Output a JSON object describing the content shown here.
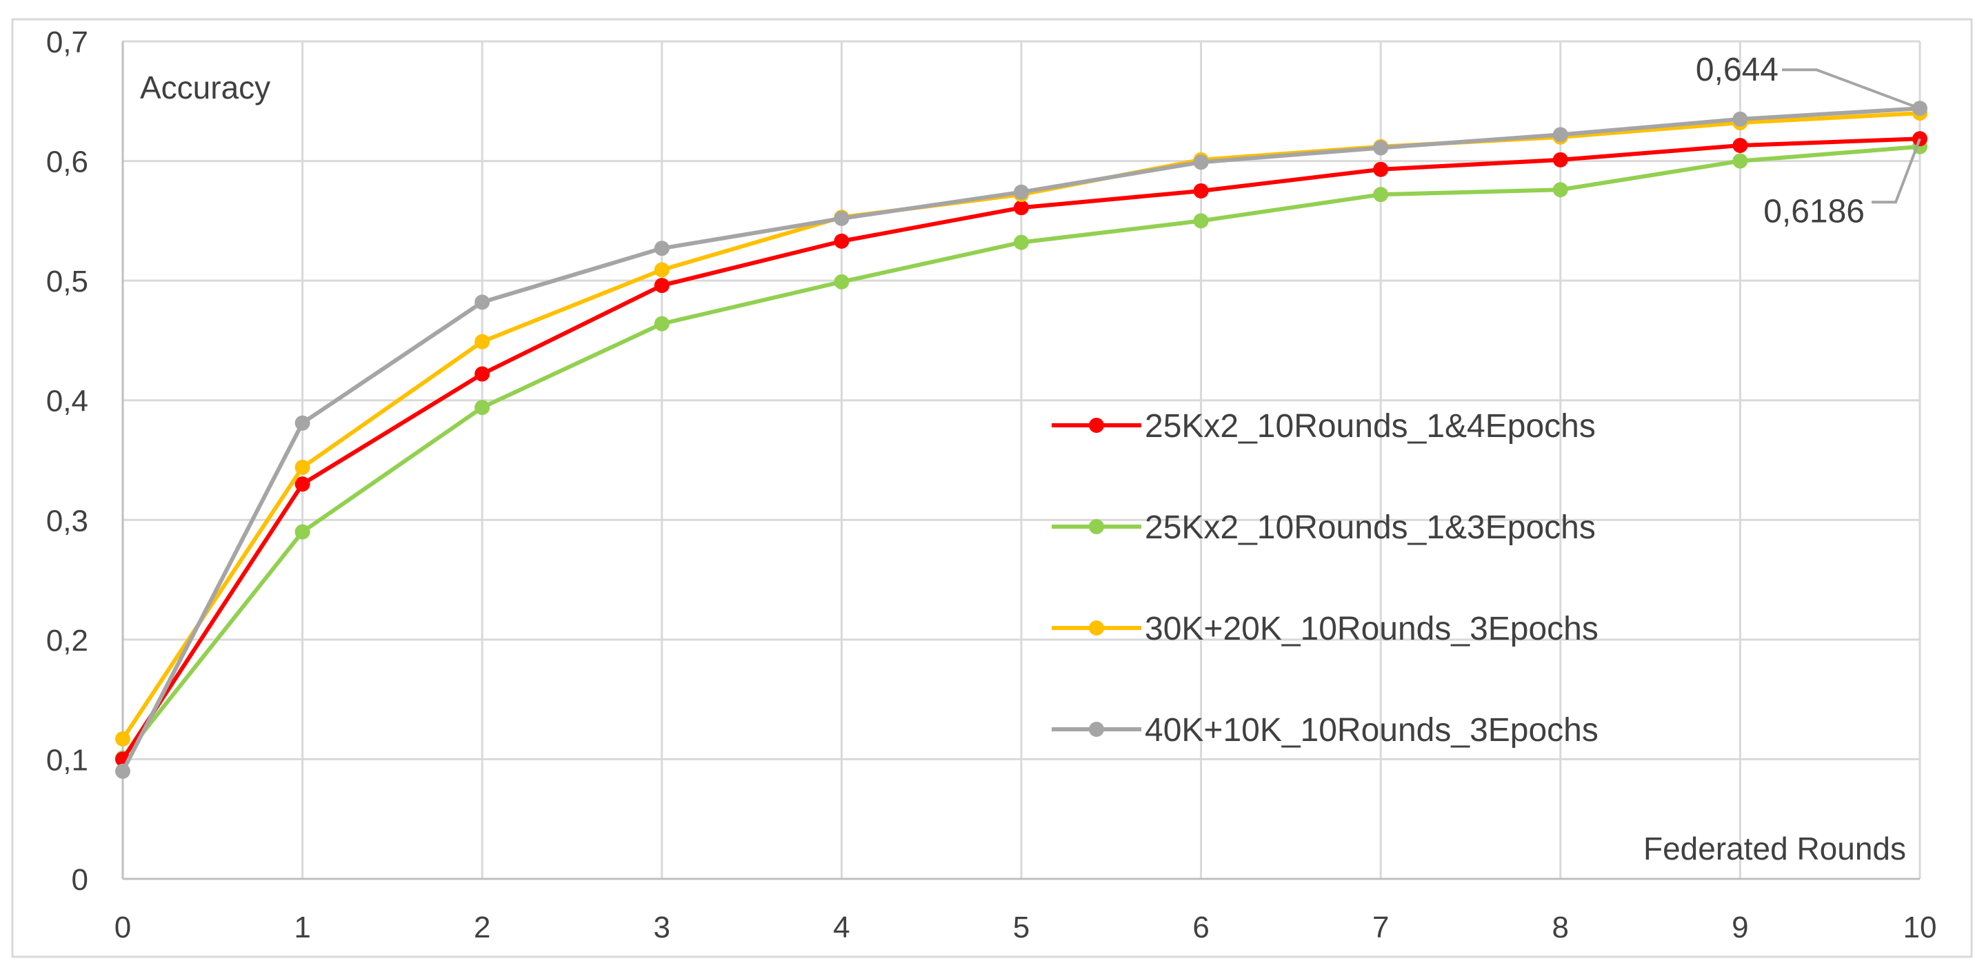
{
  "chart_data": {
    "type": "line",
    "title": "",
    "ylabel": "Accuracy",
    "xlabel": "Federated Rounds",
    "x": [
      0,
      1,
      2,
      3,
      4,
      5,
      6,
      7,
      8,
      9,
      10
    ],
    "xticks": [
      "0",
      "1",
      "2",
      "3",
      "4",
      "5",
      "6",
      "7",
      "8",
      "9",
      "10"
    ],
    "ylim": [
      0,
      0.7
    ],
    "yticks": [
      "0",
      "0,1",
      "0,2",
      "0,3",
      "0,4",
      "0,5",
      "0,6",
      "0,7"
    ],
    "grid": true,
    "legend_position": "center-right",
    "series": [
      {
        "name": "25Kx2_10Rounds_1&4Epochs",
        "color": "#ff0000",
        "values": [
          0.1,
          0.33,
          0.422,
          0.496,
          0.533,
          0.561,
          0.575,
          0.593,
          0.601,
          0.613,
          0.6186
        ]
      },
      {
        "name": "25Kx2_10Rounds_1&3Epochs",
        "color": "#92d050",
        "values": [
          0.101,
          0.29,
          0.394,
          0.464,
          0.499,
          0.532,
          0.55,
          0.572,
          0.576,
          0.6,
          0.612
        ]
      },
      {
        "name": "30K+20K_10Rounds_3Epochs",
        "color": "#ffc000",
        "values": [
          0.117,
          0.344,
          0.449,
          0.509,
          0.553,
          0.572,
          0.601,
          0.612,
          0.62,
          0.632,
          0.64
        ]
      },
      {
        "name": "40K+10K_10Rounds_3Epochs",
        "color": "#a5a5a5",
        "values": [
          0.09,
          0.381,
          0.482,
          0.527,
          0.552,
          0.574,
          0.599,
          0.611,
          0.622,
          0.635,
          0.644
        ]
      }
    ],
    "annotations": [
      {
        "text": "0,644",
        "series": 3,
        "x": 10
      },
      {
        "text": "0,6186",
        "series": 0,
        "x": 10
      }
    ]
  }
}
